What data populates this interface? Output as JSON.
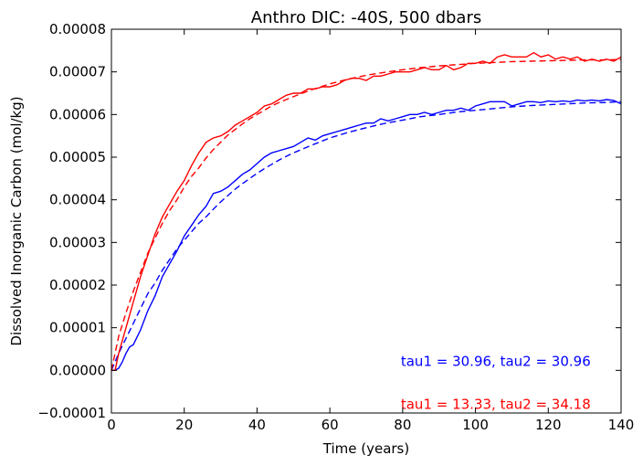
{
  "chart_data": {
    "type": "line",
    "title": "Anthro DIC: -40S, 500 dbars",
    "xlabel": "Time (years)",
    "ylabel": "Dissolved Inorganic Carbon (mol/kg)",
    "xlim": [
      0,
      140
    ],
    "ylim": [
      -1e-05,
      8e-05
    ],
    "xticks": [
      "0",
      "20",
      "40",
      "60",
      "80",
      "100",
      "120",
      "140"
    ],
    "yticks": [
      "−0.00001",
      "0.00000",
      "0.00001",
      "0.00002",
      "0.00003",
      "0.00004",
      "0.00005",
      "0.00006",
      "0.00007",
      "0.00008"
    ],
    "grid": false,
    "series": [
      {
        "color": "#0000ff",
        "style": "solid",
        "x": [
          0,
          1,
          2,
          3,
          4,
          5,
          6,
          8,
          10,
          12,
          14,
          16,
          18,
          20,
          22,
          24,
          26,
          28,
          30,
          32,
          34,
          36,
          38,
          40,
          42,
          44,
          46,
          48,
          50,
          52,
          54,
          56,
          58,
          60,
          62,
          64,
          66,
          68,
          70,
          72,
          74,
          76,
          78,
          80,
          82,
          84,
          86,
          88,
          90,
          92,
          94,
          96,
          98,
          100,
          102,
          104,
          106,
          108,
          110,
          112,
          114,
          116,
          118,
          120,
          122,
          124,
          126,
          128,
          130,
          132,
          134,
          136,
          138,
          140
        ],
        "values": [
          0.0,
          0.0,
          5e-07,
          2e-06,
          4e-06,
          5.5e-06,
          6e-06,
          9.5e-06,
          1.4e-05,
          1.75e-05,
          2.2e-05,
          2.5e-05,
          2.8e-05,
          3.15e-05,
          3.4e-05,
          3.65e-05,
          3.85e-05,
          4.15e-05,
          4.2e-05,
          4.3e-05,
          4.45e-05,
          4.6e-05,
          4.7e-05,
          4.85e-05,
          5e-05,
          5.1e-05,
          5.15e-05,
          5.2e-05,
          5.25e-05,
          5.35e-05,
          5.45e-05,
          5.4e-05,
          5.5e-05,
          5.55e-05,
          5.6e-05,
          5.65e-05,
          5.7e-05,
          5.75e-05,
          5.8e-05,
          5.8e-05,
          5.9e-05,
          5.85e-05,
          5.9e-05,
          5.95e-05,
          6e-05,
          6e-05,
          6.05e-05,
          6e-05,
          6.05e-05,
          6.1e-05,
          6.1e-05,
          6.15e-05,
          6.1e-05,
          6.2e-05,
          6.25e-05,
          6.3e-05,
          6.3e-05,
          6.3e-05,
          6.2e-05,
          6.25e-05,
          6.3e-05,
          6.3e-05,
          6.28e-05,
          6.32e-05,
          6.3e-05,
          6.32e-05,
          6.3e-05,
          6.34e-05,
          6.32e-05,
          6.34e-05,
          6.32e-05,
          6.35e-05,
          6.33e-05,
          6.25e-05
        ]
      },
      {
        "color": "#0000ff",
        "style": "dashed",
        "x": [
          0,
          2,
          4,
          6,
          8,
          10,
          12,
          14,
          16,
          18,
          20,
          22,
          24,
          26,
          28,
          30,
          32,
          34,
          36,
          38,
          40,
          42,
          44,
          46,
          48,
          50,
          55,
          60,
          65,
          70,
          75,
          80,
          85,
          90,
          95,
          100,
          105,
          110,
          115,
          120,
          125,
          130,
          135,
          140
        ],
        "values": [
          0.0,
          4e-06,
          7.5e-06,
          1.1e-05,
          1.45e-05,
          1.8e-05,
          2.05e-05,
          2.35e-05,
          2.6e-05,
          2.85e-05,
          3.05e-05,
          3.25e-05,
          3.45e-05,
          3.6e-05,
          3.78e-05,
          3.95e-05,
          4.1e-05,
          4.25e-05,
          4.38e-05,
          4.5e-05,
          4.62e-05,
          4.73e-05,
          4.83e-05,
          4.93e-05,
          5.02e-05,
          5.1e-05,
          5.28e-05,
          5.45e-05,
          5.58e-05,
          5.69e-05,
          5.79e-05,
          5.87e-05,
          5.95e-05,
          6e-05,
          6.06e-05,
          6.1e-05,
          6.14e-05,
          6.18e-05,
          6.21e-05,
          6.23e-05,
          6.25e-05,
          6.27e-05,
          6.28e-05,
          6.3e-05
        ]
      },
      {
        "color": "#ff0000",
        "style": "solid",
        "x": [
          0,
          1,
          2,
          3,
          4,
          5,
          6,
          8,
          10,
          12,
          14,
          16,
          18,
          20,
          22,
          24,
          26,
          28,
          30,
          32,
          34,
          36,
          38,
          40,
          42,
          44,
          46,
          48,
          50,
          52,
          54,
          56,
          58,
          60,
          62,
          64,
          66,
          68,
          70,
          72,
          74,
          76,
          78,
          80,
          82,
          84,
          86,
          88,
          90,
          92,
          94,
          96,
          98,
          100,
          102,
          104,
          106,
          108,
          110,
          112,
          114,
          116,
          118,
          120,
          122,
          124,
          126,
          128,
          130,
          132,
          134,
          136,
          138,
          140
        ],
        "values": [
          0.0,
          0.0,
          4e-06,
          7e-06,
          1e-05,
          1.3e-05,
          1.6e-05,
          2.2e-05,
          2.7e-05,
          3.2e-05,
          3.6e-05,
          3.9e-05,
          4.2e-05,
          4.45e-05,
          4.8e-05,
          5.1e-05,
          5.35e-05,
          5.45e-05,
          5.5e-05,
          5.6e-05,
          5.75e-05,
          5.85e-05,
          5.95e-05,
          6.05e-05,
          6.2e-05,
          6.25e-05,
          6.35e-05,
          6.45e-05,
          6.5e-05,
          6.5e-05,
          6.6e-05,
          6.6e-05,
          6.65e-05,
          6.65e-05,
          6.7e-05,
          6.8e-05,
          6.85e-05,
          6.85e-05,
          6.8e-05,
          6.9e-05,
          6.9e-05,
          6.95e-05,
          7e-05,
          7e-05,
          7e-05,
          7.05e-05,
          7.1e-05,
          7.05e-05,
          7.05e-05,
          7.15e-05,
          7.05e-05,
          7.1e-05,
          7.2e-05,
          7.2e-05,
          7.25e-05,
          7.2e-05,
          7.35e-05,
          7.4e-05,
          7.35e-05,
          7.35e-05,
          7.35e-05,
          7.45e-05,
          7.35e-05,
          7.4e-05,
          7.3e-05,
          7.35e-05,
          7.3e-05,
          7.35e-05,
          7.25e-05,
          7.3e-05,
          7.25e-05,
          7.3e-05,
          7.25e-05,
          7.35e-05
        ]
      },
      {
        "color": "#ff0000",
        "style": "dashed",
        "x": [
          0,
          2,
          4,
          6,
          8,
          10,
          12,
          14,
          16,
          18,
          20,
          22,
          24,
          26,
          28,
          30,
          32,
          34,
          36,
          38,
          40,
          42,
          44,
          46,
          48,
          50,
          55,
          60,
          65,
          70,
          75,
          80,
          85,
          90,
          95,
          100,
          105,
          110,
          115,
          120,
          125,
          130,
          135,
          140
        ],
        "values": [
          0.0,
          8e-06,
          1.35e-05,
          1.85e-05,
          2.3e-05,
          2.75e-05,
          3.1e-05,
          3.45e-05,
          3.75e-05,
          4e-05,
          4.3e-05,
          4.55e-05,
          4.75e-05,
          4.98e-05,
          5.18e-05,
          5.35e-05,
          5.52e-05,
          5.65e-05,
          5.78e-05,
          5.9e-05,
          6e-05,
          6.1e-05,
          6.2e-05,
          6.28e-05,
          6.35e-05,
          6.42e-05,
          6.58e-05,
          6.72e-05,
          6.83e-05,
          6.92e-05,
          6.99e-05,
          7.05e-05,
          7.1e-05,
          7.14e-05,
          7.17e-05,
          7.2e-05,
          7.22e-05,
          7.24e-05,
          7.25e-05,
          7.26e-05,
          7.27e-05,
          7.28e-05,
          7.28e-05,
          7.29e-05
        ]
      }
    ],
    "annotations": [
      {
        "text": "tau1 = 30.96,  tau2 = 30.96",
        "color": "#0000ff",
        "x": 79.5,
        "y": 1e-06
      },
      {
        "text": "tau1 = 13.33,  tau2 = 34.18",
        "color": "#ff0000",
        "x": 79.5,
        "y": -9e-06
      }
    ]
  }
}
